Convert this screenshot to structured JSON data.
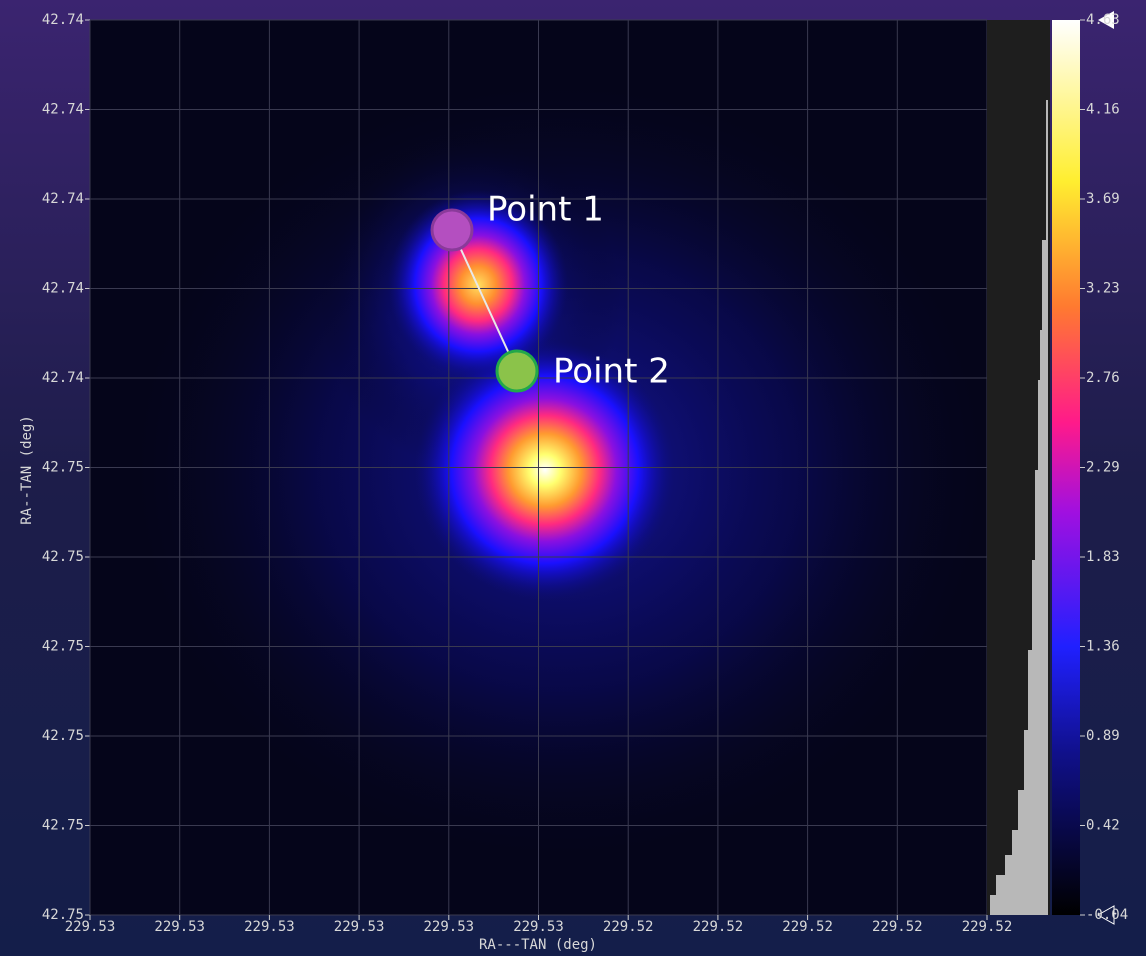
{
  "viewer": {
    "y_axis": {
      "label": "RA--TAN (deg)",
      "ticks": [
        "42.74",
        "42.74",
        "42.74",
        "42.74",
        "42.74",
        "42.75",
        "42.75",
        "42.75",
        "42.75",
        "42.75",
        "42.75"
      ]
    },
    "x_axis": {
      "label": "RA---TAN (deg)",
      "ticks": [
        "229.53",
        "229.53",
        "229.53",
        "229.53",
        "229.53",
        "229.53",
        "229.52",
        "229.52",
        "229.52",
        "229.52",
        "229.52"
      ]
    },
    "colorbar": {
      "ticks": [
        "4.63",
        "4.16",
        "3.69",
        "3.23",
        "2.76",
        "2.29",
        "1.83",
        "1.36",
        "0.89",
        "0.42",
        "-0.04"
      ]
    },
    "annotations": [
      {
        "label": "Point 1"
      },
      {
        "label": "Point 2"
      }
    ]
  }
}
